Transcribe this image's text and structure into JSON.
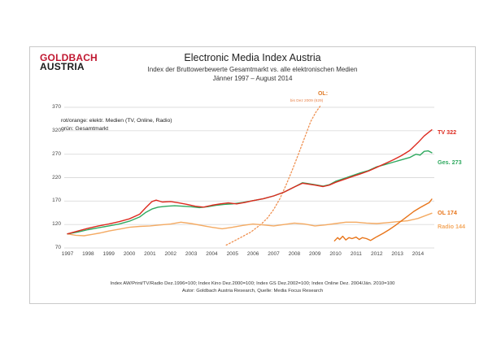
{
  "header": {
    "logo_line1": "GOLDBACH",
    "logo_line2": "AUSTRIA",
    "logo_color": "#c01730",
    "title": "Electronic Media Index Austria",
    "subtitle": "Index der Bruttowerbewerte Gesamtmarkt vs. alle elektronischen Medien",
    "date_range": "Jänner 1997 –  August 2014"
  },
  "legend": {
    "line1": "rot/orange: elektr. Medien (TV, Online, Radio)",
    "line2": "grün: Gesamtmarkt"
  },
  "annotation": {
    "label": "OL:",
    "note": "bis Dez 2009 (629)",
    "color": "#e07b28",
    "note_color": "#e8824a"
  },
  "footer": {
    "line1": "Index AW/Print/TV/Radio Dez.1996=100; Index Kino Dez.2000=100; Index GS Dez.2002=100; Index Online Dez. 2004/Jän. 2010=100",
    "line2": "Autor: Goldbach Austria Research, Quelle: Media Focus Research"
  },
  "chart_data": {
    "type": "line",
    "title": "Electronic Media Index Austria",
    "xlabel": "",
    "ylabel": "",
    "x_range": [
      1997,
      2014.67
    ],
    "y_range": [
      70,
      370
    ],
    "grid": true,
    "grid_color": "#dcdcdc",
    "yticks": [
      70,
      120,
      170,
      220,
      270,
      320,
      370
    ],
    "xticks": [
      1997,
      1998,
      1999,
      2000,
      2001,
      2002,
      2003,
      2004,
      2005,
      2006,
      2007,
      2008,
      2009,
      2010,
      2011,
      2012,
      2013,
      2014
    ],
    "series": [
      {
        "name": "OL alte Basis (dotted, bis Dez 2009)",
        "color": "#ef9050",
        "dashed": true,
        "end_label": null,
        "points": [
          [
            2004.7,
            76
          ],
          [
            2005,
            83
          ],
          [
            2005.3,
            90
          ],
          [
            2005.6,
            97
          ],
          [
            2005.9,
            104
          ],
          [
            2006.1,
            111
          ],
          [
            2006.4,
            121
          ],
          [
            2006.7,
            134
          ],
          [
            2007,
            152
          ],
          [
            2007.3,
            175
          ],
          [
            2007.6,
            204
          ],
          [
            2007.9,
            236
          ],
          [
            2008.2,
            270
          ],
          [
            2008.5,
            305
          ],
          [
            2008.8,
            340
          ],
          [
            2009.05,
            360
          ],
          [
            2009.25,
            372
          ]
        ]
      },
      {
        "name": "Radio",
        "color": "#f4aa62",
        "dashed": false,
        "end_label": "Radio 144",
        "end_value": 144,
        "points": [
          [
            1997,
            100
          ],
          [
            1997.4,
            97
          ],
          [
            1997.8,
            96
          ],
          [
            1998.2,
            99
          ],
          [
            1998.6,
            102
          ],
          [
            1999,
            106
          ],
          [
            1999.5,
            110
          ],
          [
            2000,
            114
          ],
          [
            2000.5,
            116
          ],
          [
            2001,
            117
          ],
          [
            2001.5,
            119
          ],
          [
            2002,
            121
          ],
          [
            2002.5,
            125
          ],
          [
            2003,
            122
          ],
          [
            2003.5,
            118
          ],
          [
            2004,
            114
          ],
          [
            2004.5,
            111
          ],
          [
            2005,
            114
          ],
          [
            2005.5,
            118
          ],
          [
            2006,
            121
          ],
          [
            2006.5,
            119
          ],
          [
            2007,
            117
          ],
          [
            2007.5,
            120
          ],
          [
            2008,
            123
          ],
          [
            2008.5,
            121
          ],
          [
            2009,
            117
          ],
          [
            2009.5,
            119
          ],
          [
            2010,
            122
          ],
          [
            2010.5,
            125
          ],
          [
            2011,
            125
          ],
          [
            2011.5,
            123
          ],
          [
            2012,
            122
          ],
          [
            2012.5,
            124
          ],
          [
            2013,
            126
          ],
          [
            2013.5,
            128
          ],
          [
            2014,
            133
          ],
          [
            2014.3,
            138
          ],
          [
            2014.67,
            144
          ]
        ]
      },
      {
        "name": "Online (OL)",
        "color": "#e8751a",
        "dashed": false,
        "end_label": "OL 174",
        "end_value": 174,
        "points": [
          [
            2009.95,
            85
          ],
          [
            2010.1,
            92
          ],
          [
            2010.2,
            88
          ],
          [
            2010.35,
            95
          ],
          [
            2010.5,
            87
          ],
          [
            2010.65,
            92
          ],
          [
            2010.8,
            90
          ],
          [
            2011,
            93
          ],
          [
            2011.15,
            88
          ],
          [
            2011.3,
            92
          ],
          [
            2011.5,
            90
          ],
          [
            2011.7,
            86
          ],
          [
            2011.85,
            90
          ],
          [
            2012,
            94
          ],
          [
            2012.3,
            101
          ],
          [
            2012.6,
            109
          ],
          [
            2012.9,
            118
          ],
          [
            2013.2,
            128
          ],
          [
            2013.5,
            138
          ],
          [
            2013.8,
            148
          ],
          [
            2014.1,
            156
          ],
          [
            2014.35,
            162
          ],
          [
            2014.55,
            167
          ],
          [
            2014.67,
            174
          ]
        ]
      },
      {
        "name": "Gesamtmarkt",
        "color": "#2fa95f",
        "dashed": false,
        "end_label": "Ges. 273",
        "end_value": 273,
        "points": [
          [
            1997,
            100
          ],
          [
            1997.5,
            104
          ],
          [
            1998,
            109
          ],
          [
            1998.5,
            113
          ],
          [
            1999,
            117
          ],
          [
            1999.5,
            121
          ],
          [
            2000,
            127
          ],
          [
            2000.5,
            136
          ],
          [
            2000.8,
            146
          ],
          [
            2001.1,
            153
          ],
          [
            2001.4,
            157
          ],
          [
            2001.8,
            159
          ],
          [
            2002.2,
            160
          ],
          [
            2002.6,
            159
          ],
          [
            2003,
            158
          ],
          [
            2003.4,
            156
          ],
          [
            2003.8,
            158
          ],
          [
            2004.2,
            161
          ],
          [
            2004.6,
            163
          ],
          [
            2005,
            164
          ],
          [
            2005.5,
            167
          ],
          [
            2006,
            171
          ],
          [
            2006.5,
            175
          ],
          [
            2007,
            181
          ],
          [
            2007.5,
            189
          ],
          [
            2008,
            200
          ],
          [
            2008.4,
            209
          ],
          [
            2008.7,
            207
          ],
          [
            2009,
            205
          ],
          [
            2009.4,
            202
          ],
          [
            2009.7,
            205
          ],
          [
            2010,
            212
          ],
          [
            2010.4,
            218
          ],
          [
            2010.8,
            224
          ],
          [
            2011.2,
            230
          ],
          [
            2011.6,
            235
          ],
          [
            2012,
            243
          ],
          [
            2012.4,
            248
          ],
          [
            2012.8,
            253
          ],
          [
            2013.2,
            258
          ],
          [
            2013.6,
            263
          ],
          [
            2013.9,
            270
          ],
          [
            2014.1,
            268
          ],
          [
            2014.3,
            276
          ],
          [
            2014.5,
            277
          ],
          [
            2014.67,
            273
          ]
        ]
      },
      {
        "name": "TV",
        "color": "#dd2a1f",
        "dashed": false,
        "end_label": "TV 322",
        "end_value": 322,
        "points": [
          [
            1997,
            100
          ],
          [
            1997.5,
            106
          ],
          [
            1998,
            112
          ],
          [
            1998.5,
            117
          ],
          [
            1999,
            121
          ],
          [
            1999.5,
            126
          ],
          [
            2000,
            132
          ],
          [
            2000.5,
            142
          ],
          [
            2000.8,
            156
          ],
          [
            2001.1,
            169
          ],
          [
            2001.3,
            172
          ],
          [
            2001.6,
            168
          ],
          [
            2002,
            169
          ],
          [
            2002.4,
            166
          ],
          [
            2002.8,
            163
          ],
          [
            2003.2,
            159
          ],
          [
            2003.6,
            157
          ],
          [
            2004,
            161
          ],
          [
            2004.4,
            164
          ],
          [
            2004.8,
            166
          ],
          [
            2005.2,
            164
          ],
          [
            2005.6,
            167
          ],
          [
            2006,
            171
          ],
          [
            2006.5,
            175
          ],
          [
            2007,
            181
          ],
          [
            2007.5,
            189
          ],
          [
            2008,
            200
          ],
          [
            2008.4,
            208
          ],
          [
            2008.7,
            206
          ],
          [
            2009,
            204
          ],
          [
            2009.4,
            201
          ],
          [
            2009.7,
            204
          ],
          [
            2010,
            210
          ],
          [
            2010.4,
            216
          ],
          [
            2010.8,
            222
          ],
          [
            2011.2,
            228
          ],
          [
            2011.6,
            234
          ],
          [
            2012,
            242
          ],
          [
            2012.4,
            250
          ],
          [
            2012.8,
            258
          ],
          [
            2013.2,
            267
          ],
          [
            2013.6,
            278
          ],
          [
            2014,
            295
          ],
          [
            2014.3,
            309
          ],
          [
            2014.67,
            322
          ]
        ]
      }
    ]
  }
}
